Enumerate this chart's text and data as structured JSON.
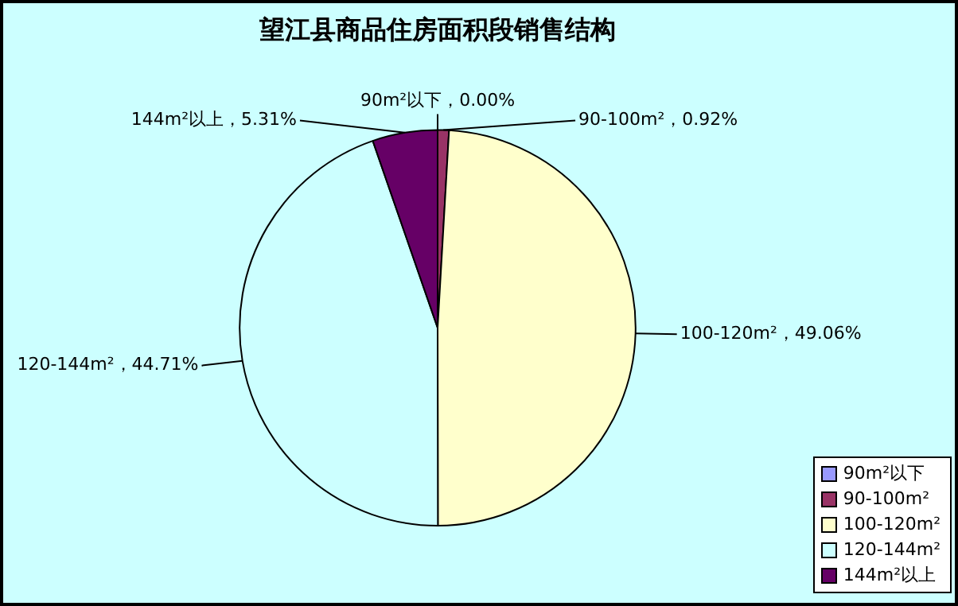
{
  "chart_data": {
    "type": "pie",
    "title": "望江县商品住房面积段销售结构",
    "categories": [
      "90m²以下",
      "90-100m²",
      "100-120m²",
      "120-144m²",
      "144m²以上"
    ],
    "values": [
      0.0,
      0.92,
      49.06,
      44.71,
      5.31
    ],
    "colors": [
      "#9999ff",
      "#993366",
      "#ffffcc",
      "#ccffff",
      "#660066"
    ],
    "value_labels": [
      "90m²以下，0.00%",
      "90-100m²，0.92%",
      "100-120m²，49.06%",
      "120-144m²，44.71%",
      "144m²以上，5.31%"
    ],
    "legend": "bottom right"
  }
}
